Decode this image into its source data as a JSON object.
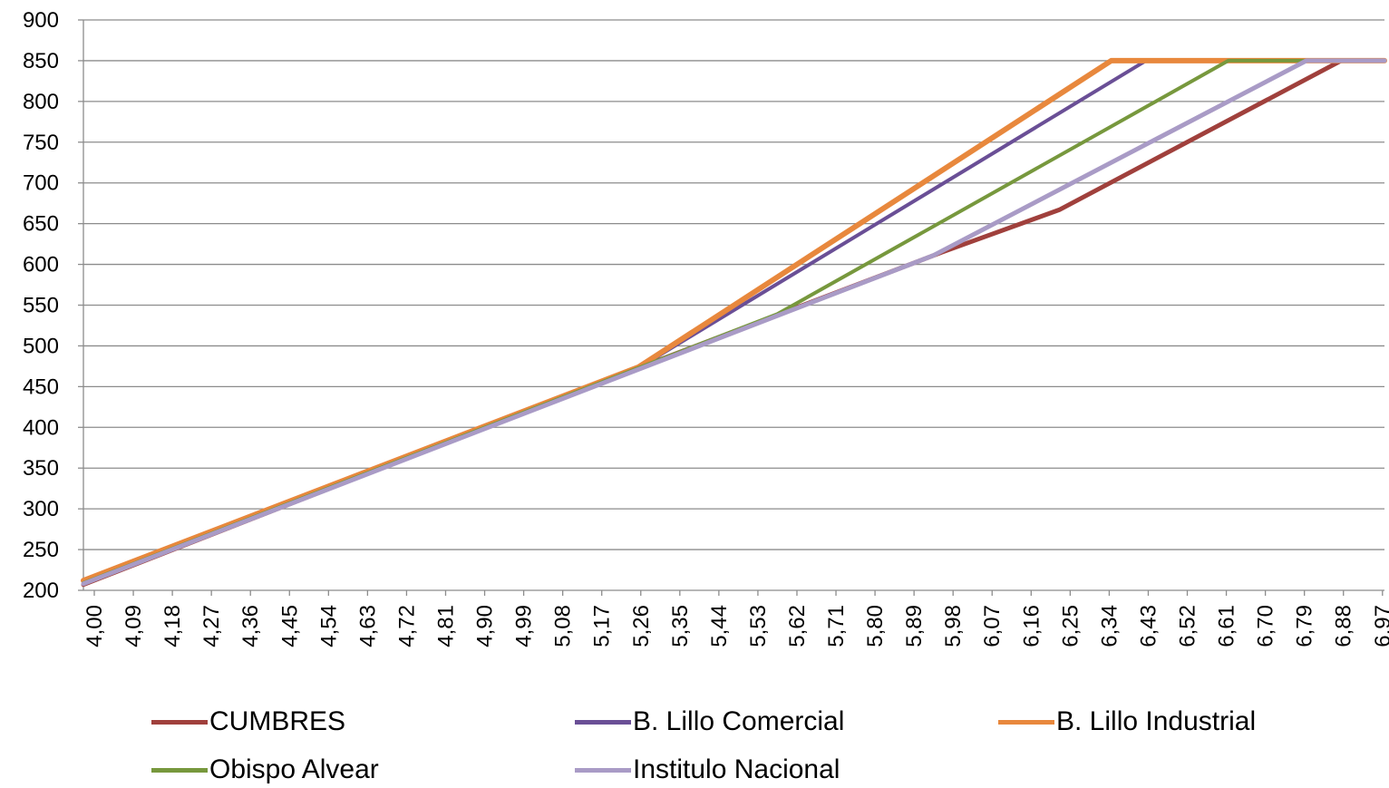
{
  "chart_data": {
    "type": "line",
    "title": "",
    "xlabel": "",
    "ylabel": "",
    "ylim": [
      200,
      900
    ],
    "yticks": [
      200,
      250,
      300,
      350,
      400,
      450,
      500,
      550,
      600,
      650,
      700,
      750,
      800,
      850,
      900
    ],
    "xlim": [
      4.0,
      7.0
    ],
    "xtick_labels": [
      "4,00",
      "4,09",
      "4,18",
      "4,27",
      "4,36",
      "4,45",
      "4,54",
      "4,63",
      "4,72",
      "4,81",
      "4,90",
      "4,99",
      "5,08",
      "5,17",
      "5,26",
      "5,35",
      "5,44",
      "5,53",
      "5,62",
      "5,71",
      "5,80",
      "5,89",
      "5,98",
      "6,07",
      "6,16",
      "6,25",
      "6,34",
      "6,43",
      "6,52",
      "6,61",
      "6,70",
      "6,79",
      "6,88",
      "6,97"
    ],
    "grid": "horizontal",
    "legend_position": "bottom",
    "series": [
      {
        "name": "CUMBRES",
        "color": "#A0403C",
        "width": 5,
        "points": [
          [
            4.0,
            207
          ],
          [
            5.26,
            469
          ],
          [
            5.98,
            615
          ],
          [
            6.25,
            667
          ],
          [
            6.9,
            850
          ],
          [
            7.0,
            850
          ]
        ]
      },
      {
        "name": "B. Lillo Comercial",
        "color": "#6A4F96",
        "width": 4,
        "points": [
          [
            4.0,
            210
          ],
          [
            5.28,
            473
          ],
          [
            6.45,
            850
          ],
          [
            7.0,
            850
          ]
        ]
      },
      {
        "name": "B. Lillo Industrial",
        "color": "#E8883D",
        "width": 6,
        "points": [
          [
            4.0,
            212
          ],
          [
            5.28,
            474
          ],
          [
            6.37,
            850
          ],
          [
            7.0,
            850
          ]
        ]
      },
      {
        "name": "Obispo Alvear",
        "color": "#77983D",
        "width": 4,
        "points": [
          [
            4.0,
            209
          ],
          [
            5.6,
            539
          ],
          [
            6.64,
            850
          ],
          [
            7.0,
            850
          ]
        ]
      },
      {
        "name": "Instituto Nacional",
        "color": "#A99BC6",
        "width": 5,
        "points": [
          [
            4.0,
            208
          ],
          [
            5.96,
            611
          ],
          [
            6.82,
            850
          ],
          [
            7.0,
            850
          ]
        ]
      }
    ]
  },
  "legend": {
    "items": [
      {
        "label": "CUMBRES",
        "color": "#A0403C"
      },
      {
        "label": "B. Lillo Comercial",
        "color": "#6A4F96"
      },
      {
        "label": "B. Lillo Industrial",
        "color": "#E8883D"
      },
      {
        "label": "Obispo Alvear",
        "color": "#77983D"
      },
      {
        "label": "Institulo Nacional",
        "color": "#A99BC6"
      }
    ]
  }
}
